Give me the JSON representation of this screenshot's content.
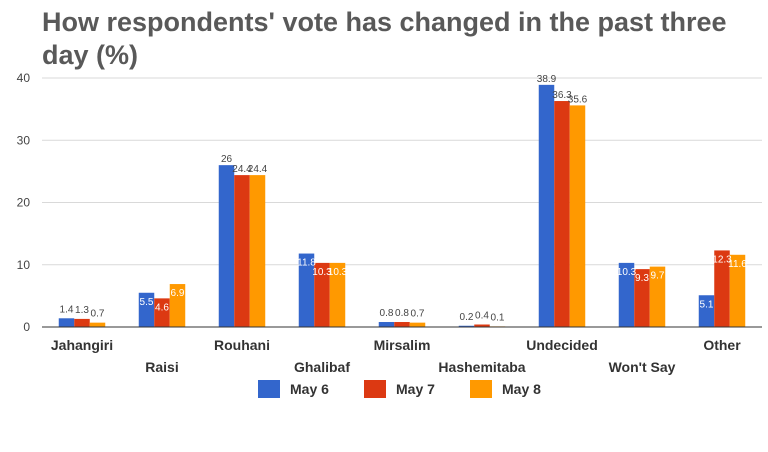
{
  "chart_data": {
    "type": "bar",
    "title": "How respondents' vote has changed in the past three day (%)",
    "xlabel": "",
    "ylabel": "",
    "ylim": [
      0,
      40
    ],
    "yticks": [
      "0",
      "10",
      "20",
      "30",
      "40"
    ],
    "grid": true,
    "legend_position": "bottom",
    "categories": [
      "Jahangiri",
      "Raisi",
      "Rouhani",
      "Ghalibaf",
      "Mirsalim",
      "Hashemitaba",
      "Undecided",
      "Won't Say",
      "Other"
    ],
    "series": [
      {
        "name": "May 6",
        "color": "#3366cc",
        "values": [
          1.4,
          5.5,
          26,
          11.8,
          0.8,
          0.2,
          38.9,
          10.3,
          5.1
        ],
        "labels": [
          "1.4",
          "5.5",
          "26",
          "11.8",
          "0.8",
          "0.2",
          "38.9",
          "10.3",
          "5.1"
        ]
      },
      {
        "name": "May 7",
        "color": "#dc3912",
        "values": [
          1.3,
          4.6,
          24.4,
          10.3,
          0.8,
          0.4,
          36.3,
          9.3,
          12.3
        ],
        "labels": [
          "1.3",
          "4.6",
          "24.4",
          "10.3",
          "0.8",
          "0.4",
          "36.3",
          "9.3",
          "12.3"
        ]
      },
      {
        "name": "May 8",
        "color": "#ff9900",
        "values": [
          0.7,
          6.9,
          24.4,
          10.3,
          0.7,
          0.1,
          35.6,
          9.7,
          11.6
        ],
        "labels": [
          "0.7",
          "6.9",
          "24.4",
          "10.3",
          "0.7",
          "0.1",
          "35.6",
          "9.7",
          "11.6"
        ]
      }
    ]
  }
}
